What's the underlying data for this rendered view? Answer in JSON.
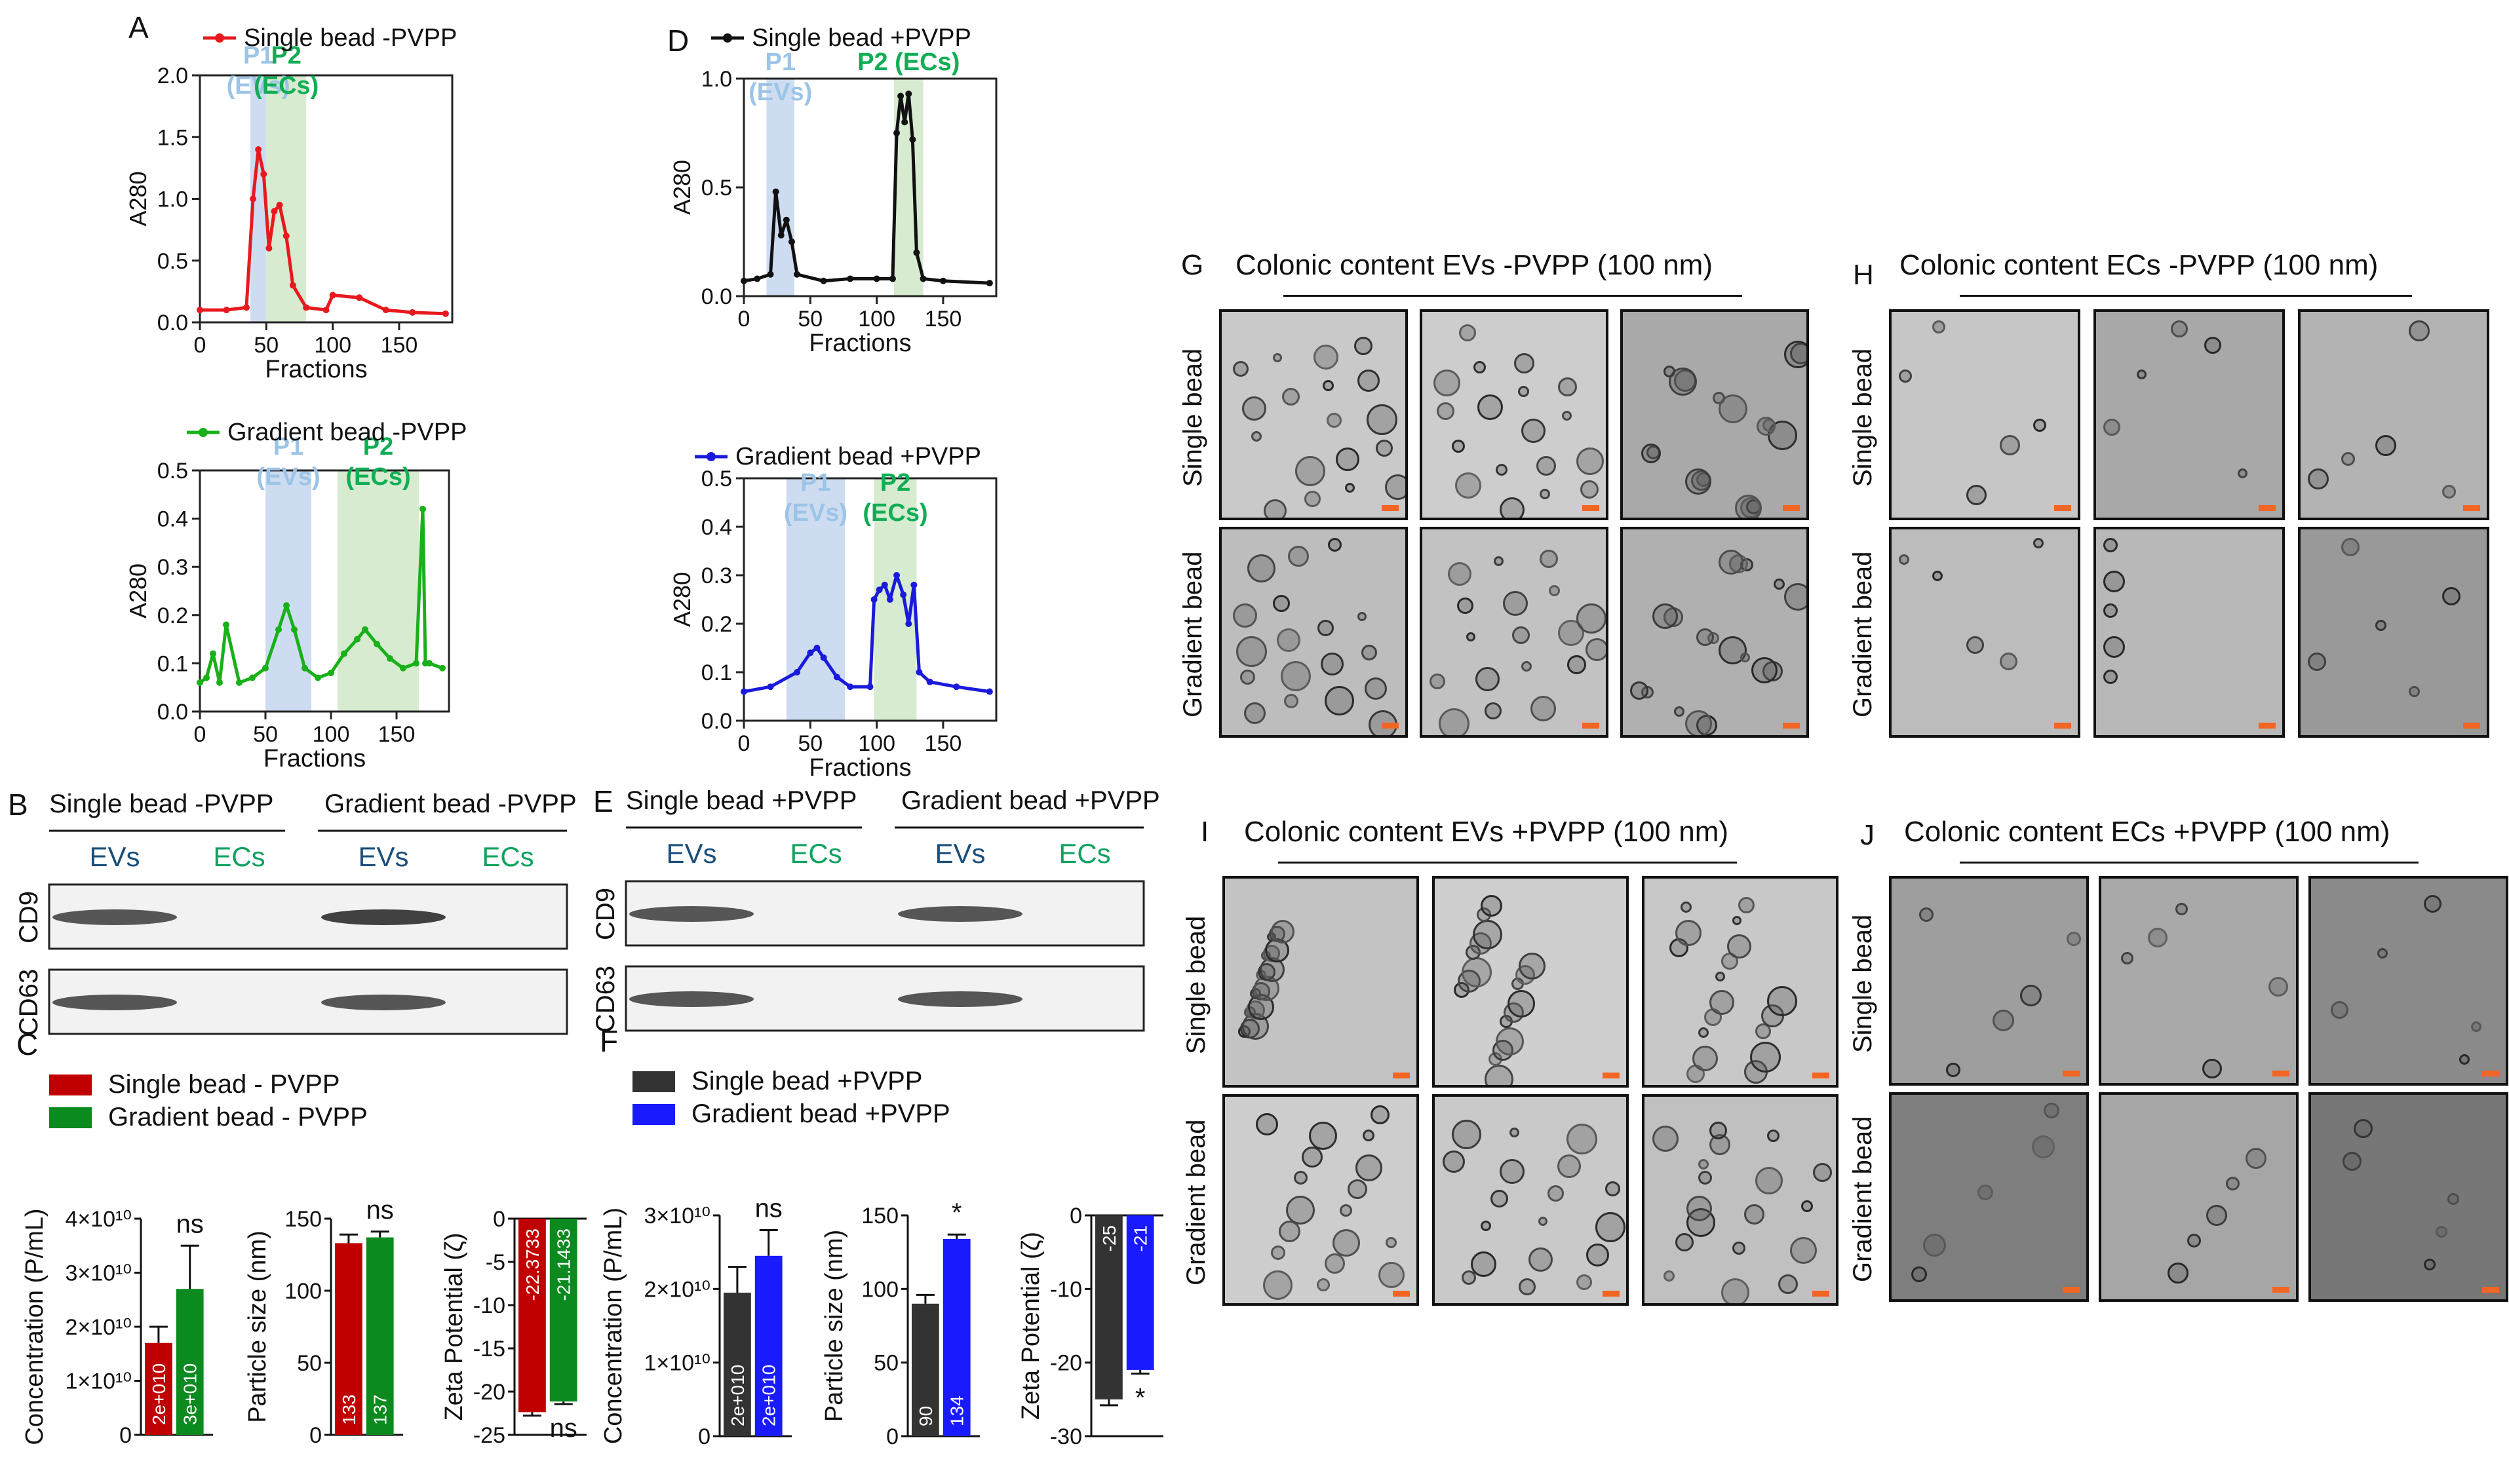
{
  "panels": {
    "A": {
      "letter": "A",
      "top_chart": {
        "legend": "Single bead -PVPP",
        "color": "#e8191e",
        "ylabel": "A280",
        "xlabel": "Fractions",
        "yticks": [
          "0.0",
          "0.5",
          "1.0",
          "1.5",
          "2.0"
        ],
        "xticks": [
          "0",
          "50",
          "100",
          "150"
        ],
        "ylim": [
          0,
          2.0
        ],
        "xlim": [
          0,
          190
        ],
        "p1": {
          "label": "P1",
          "sub": "(EVs)",
          "range": [
            38,
            50
          ]
        },
        "p2": {
          "label": "P2",
          "sub": "(ECs)",
          "range": [
            50,
            80
          ]
        }
      },
      "bottom_chart": {
        "legend": "Gradient bead -PVPP",
        "color": "#19b019",
        "ylabel": "A280",
        "xlabel": "Fractions",
        "yticks": [
          "0.0",
          "0.1",
          "0.2",
          "0.3",
          "0.4",
          "0.5"
        ],
        "xticks": [
          "0",
          "50",
          "100",
          "150"
        ],
        "ylim": [
          0,
          0.5
        ],
        "xlim": [
          0,
          190
        ],
        "p1": {
          "label": "P1",
          "sub": "(EVs)",
          "range": [
            50,
            85
          ]
        },
        "p2": {
          "label": "P2",
          "sub": "(ECs)",
          "range": [
            105,
            167
          ]
        }
      }
    },
    "D": {
      "letter": "D",
      "top_chart": {
        "legend": "Single bead +PVPP",
        "color": "#111111",
        "ylabel": "A280",
        "xlabel": "Fractions",
        "yticks": [
          "0.0",
          "0.5",
          "1.0"
        ],
        "xticks": [
          "0",
          "50",
          "100",
          "150"
        ],
        "ylim": [
          0,
          1.0
        ],
        "xlim": [
          0,
          190
        ],
        "p1": {
          "label": "P1",
          "sub": "(EVs)",
          "range": [
            17,
            38
          ]
        },
        "p2": {
          "label": "P2 (ECs)",
          "sub": "",
          "range": [
            113,
            135
          ]
        }
      },
      "bottom_chart": {
        "legend": "Gradient bead +PVPP",
        "color": "#1a1adc",
        "ylabel": "A280",
        "xlabel": "Fractions",
        "yticks": [
          "0.0",
          "0.1",
          "0.2",
          "0.3",
          "0.4",
          "0.5"
        ],
        "xticks": [
          "0",
          "50",
          "100",
          "150"
        ],
        "ylim": [
          0,
          0.5
        ],
        "xlim": [
          0,
          190
        ],
        "p1": {
          "label": "P1",
          "sub": "(EVs)",
          "range": [
            32,
            76
          ]
        },
        "p2": {
          "label": "P2",
          "sub": "(ECs)",
          "range": [
            98,
            130
          ]
        }
      }
    },
    "B": {
      "letter": "B",
      "groups": [
        "Single bead -PVPP",
        "Gradient bead -PVPP"
      ],
      "lanes": [
        "EVs",
        "ECs",
        "EVs",
        "ECs"
      ],
      "rows": [
        "CD9",
        "CD63"
      ]
    },
    "E": {
      "letter": "E",
      "groups": [
        "Single bead +PVPP",
        "Gradient bead +PVPP"
      ],
      "lanes": [
        "EVs",
        "ECs",
        "EVs",
        "ECs"
      ],
      "rows": [
        "CD9",
        "CD63"
      ]
    },
    "C": {
      "letter": "C",
      "legend": [
        {
          "label": "Single bead - PVPP",
          "color": "#c00000"
        },
        {
          "label": "Gradient bead - PVPP",
          "color": "#0b8a1f"
        }
      ],
      "bars": [
        {
          "ylabel": "Concentration (P/mL)",
          "yticks": [
            "0",
            "1×10¹⁰",
            "2×10¹⁰",
            "3×10¹⁰",
            "4×10¹⁰"
          ],
          "ylim": [
            0,
            4
          ],
          "values": [
            1.7,
            2.7
          ],
          "errors": [
            0.3,
            0.8
          ],
          "bar_labels": [
            "2e+010",
            "3e+010"
          ],
          "sig": "ns"
        },
        {
          "ylabel": "Particle size (nm)",
          "yticks": [
            "0",
            "50",
            "100",
            "150"
          ],
          "ylim": [
            0,
            150
          ],
          "values": [
            133,
            137
          ],
          "errors": [
            6,
            4
          ],
          "bar_labels": [
            "133",
            "137"
          ],
          "sig": "ns"
        },
        {
          "ylabel": "Zeta Potential (ζ)",
          "yticks": [
            "0",
            "-5",
            "-10",
            "-15",
            "-20",
            "-25"
          ],
          "ylim": [
            -25,
            0
          ],
          "values": [
            -22.3733,
            -21.1433
          ],
          "errors": [
            0.4,
            0.3
          ],
          "bar_labels": [
            "-22.3733",
            "-21.1433"
          ],
          "sig": "ns"
        }
      ]
    },
    "F": {
      "letter": "F",
      "legend": [
        {
          "label": "Single bead +PVPP",
          "color": "#333333"
        },
        {
          "label": "Gradient bead +PVPP",
          "color": "#1a1aff"
        }
      ],
      "bars": [
        {
          "ylabel": "Concentration (P/mL)",
          "yticks": [
            "0",
            "1×10¹⁰",
            "2×10¹⁰",
            "3×10¹⁰"
          ],
          "ylim": [
            0,
            3
          ],
          "values": [
            1.95,
            2.45
          ],
          "errors": [
            0.35,
            0.35
          ],
          "bar_labels": [
            "2e+010",
            "2e+010"
          ],
          "sig": "ns"
        },
        {
          "ylabel": "Particle size (nm)",
          "yticks": [
            "0",
            "50",
            "100",
            "150"
          ],
          "ylim": [
            0,
            150
          ],
          "values": [
            90,
            134
          ],
          "errors": [
            6,
            3
          ],
          "bar_labels": [
            "90",
            "134"
          ],
          "sig": "*"
        },
        {
          "ylabel": "Zeta Potential (ζ)",
          "yticks": [
            "0",
            "-10",
            "-20",
            "-30"
          ],
          "ylim": [
            -30,
            0
          ],
          "values": [
            -25,
            -21
          ],
          "errors": [
            0.8,
            0.5
          ],
          "bar_labels": [
            "-25",
            "-21"
          ],
          "sig": "*"
        }
      ]
    },
    "G": {
      "letter": "G",
      "title": "Colonic content EVs -PVPP (100 nm)",
      "rows": [
        "Single bead",
        "Gradient bead"
      ]
    },
    "H": {
      "letter": "H",
      "title": "Colonic content ECs -PVPP (100 nm)",
      "rows": [
        "Single bead",
        "Gradient bead"
      ]
    },
    "I": {
      "letter": "I",
      "title": "Colonic content EVs +PVPP (100 nm)",
      "rows": [
        "Single bead",
        "Gradient bead"
      ]
    },
    "J": {
      "letter": "J",
      "title": "Colonic content ECs +PVPP (100 nm)",
      "rows": [
        "Single bead",
        "Gradient bead"
      ]
    }
  },
  "chart_data": [
    {
      "type": "line",
      "title": "Single bead -PVPP",
      "xlabel": "Fractions",
      "ylabel": "A280",
      "ylim": [
        0,
        2.0
      ],
      "x": [
        0,
        20,
        35,
        40,
        44,
        48,
        52,
        56,
        60,
        65,
        70,
        80,
        95,
        100,
        120,
        140,
        160,
        185
      ],
      "y": [
        0.1,
        0.1,
        0.12,
        1.0,
        1.4,
        1.2,
        0.6,
        0.9,
        0.95,
        0.7,
        0.3,
        0.12,
        0.1,
        0.22,
        0.2,
        0.1,
        0.08,
        0.07
      ]
    },
    {
      "type": "line",
      "title": "Gradient bead -PVPP",
      "xlabel": "Fractions",
      "ylabel": "A280",
      "ylim": [
        0,
        0.5
      ],
      "x": [
        0,
        5,
        10,
        15,
        20,
        30,
        40,
        50,
        60,
        66,
        72,
        80,
        90,
        100,
        110,
        120,
        126,
        135,
        145,
        155,
        165,
        170,
        172,
        175,
        185
      ],
      "y": [
        0.06,
        0.07,
        0.12,
        0.06,
        0.18,
        0.06,
        0.07,
        0.09,
        0.17,
        0.22,
        0.17,
        0.09,
        0.07,
        0.08,
        0.12,
        0.15,
        0.17,
        0.14,
        0.11,
        0.09,
        0.1,
        0.42,
        0.1,
        0.1,
        0.09
      ]
    },
    {
      "type": "line",
      "title": "Single bead +PVPP",
      "xlabel": "Fractions",
      "ylabel": "A280",
      "ylim": [
        0,
        1.0
      ],
      "x": [
        0,
        10,
        20,
        24,
        28,
        32,
        36,
        40,
        60,
        80,
        100,
        112,
        115,
        118,
        121,
        124,
        127,
        130,
        135,
        150,
        185
      ],
      "y": [
        0.07,
        0.08,
        0.1,
        0.48,
        0.28,
        0.35,
        0.25,
        0.1,
        0.07,
        0.08,
        0.08,
        0.08,
        0.75,
        0.92,
        0.8,
        0.93,
        0.72,
        0.2,
        0.08,
        0.07,
        0.06
      ]
    },
    {
      "type": "line",
      "title": "Gradient bead +PVPP",
      "xlabel": "Fractions",
      "ylabel": "A280",
      "ylim": [
        0,
        0.5
      ],
      "x": [
        0,
        20,
        40,
        50,
        55,
        60,
        70,
        80,
        95,
        98,
        102,
        106,
        110,
        115,
        120,
        124,
        128,
        132,
        140,
        160,
        185
      ],
      "y": [
        0.06,
        0.07,
        0.1,
        0.14,
        0.15,
        0.13,
        0.09,
        0.07,
        0.07,
        0.25,
        0.27,
        0.28,
        0.25,
        0.3,
        0.26,
        0.2,
        0.28,
        0.1,
        0.08,
        0.07,
        0.06
      ]
    }
  ]
}
